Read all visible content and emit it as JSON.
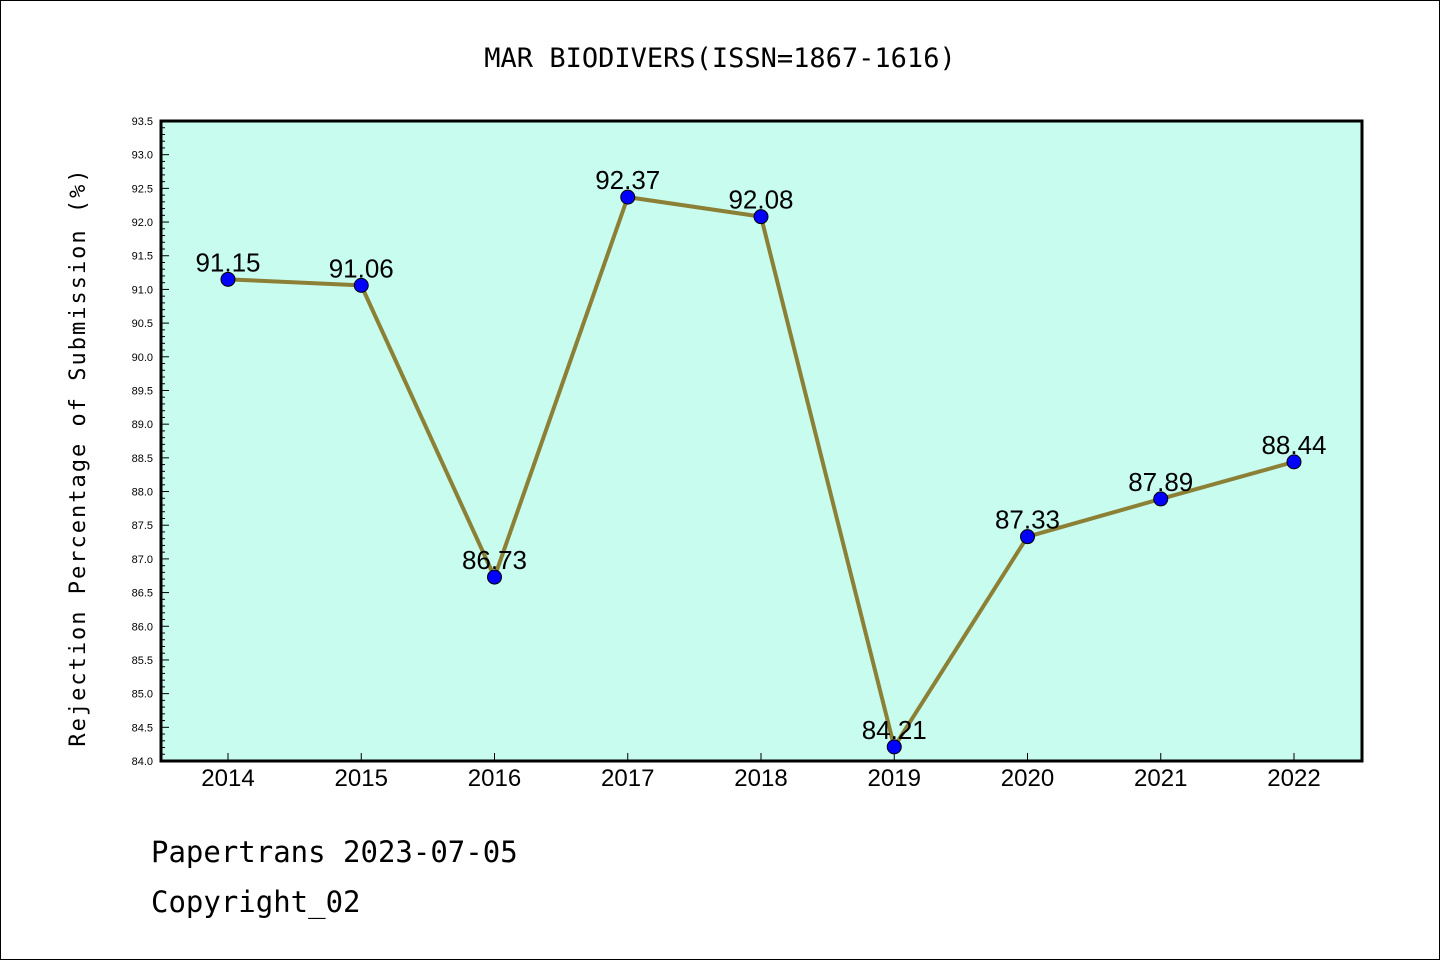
{
  "chart_data": {
    "type": "line",
    "title": "MAR BIODIVERS(ISSN=1867-1616)",
    "xlabel": "",
    "ylabel": "Rejection Percentage of Submission (%)",
    "categories": [
      "2014",
      "2015",
      "2016",
      "2017",
      "2018",
      "2019",
      "2020",
      "2021",
      "2022"
    ],
    "series": [
      {
        "values": [
          91.15,
          91.06,
          86.73,
          92.37,
          92.08,
          84.21,
          87.33,
          87.89,
          88.44
        ],
        "labels": [
          "91.15",
          "91.06",
          "86.73",
          "92.37",
          "92.08",
          "84.21",
          "87.33",
          "87.89",
          "88.44"
        ]
      }
    ],
    "ylim": [
      84.0,
      93.5
    ],
    "yticks": [
      "84.0",
      "84.5",
      "85.0",
      "85.5",
      "86.0",
      "86.5",
      "87.0",
      "87.5",
      "88.0",
      "88.5",
      "89.0",
      "89.5",
      "90.0",
      "90.5",
      "91.0",
      "91.5",
      "92.0",
      "92.5",
      "93.0",
      "93.5"
    ],
    "grid": false,
    "legend": "none",
    "colors": {
      "plot_background": "#c8fcee",
      "line": "#8b8035",
      "marker": "#0000ff",
      "axes": "#000000"
    }
  },
  "footer": {
    "line1": "Papertrans 2023-07-05",
    "line2": "Copyright_02"
  }
}
